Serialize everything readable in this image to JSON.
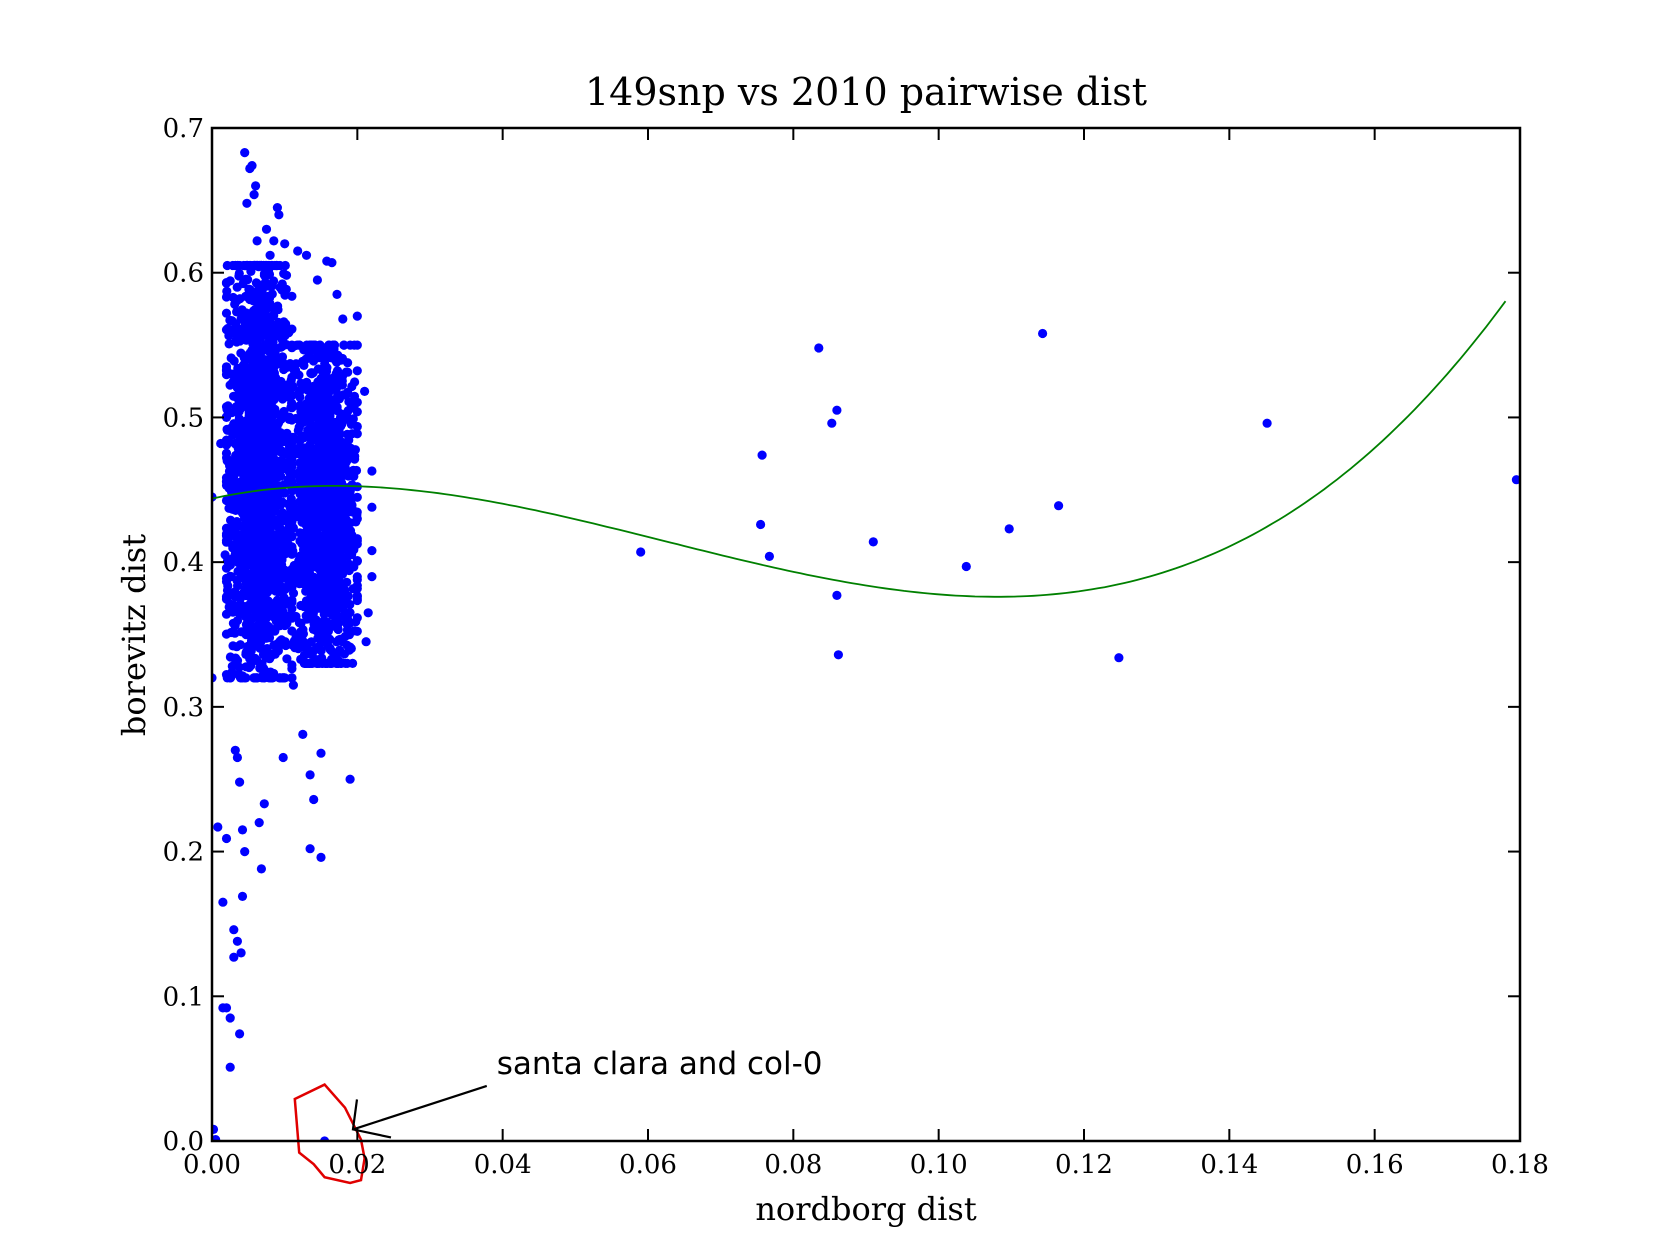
{
  "chart_data": {
    "type": "scatter",
    "title": "149snp vs 2010 pairwise dist",
    "xlabel": "nordborg dist",
    "ylabel": "borevitz dist",
    "xlim": [
      0.0,
      0.18
    ],
    "ylim": [
      0.0,
      0.7
    ],
    "xticks": [
      0.0,
      0.02,
      0.04,
      0.06,
      0.08,
      0.1,
      0.12,
      0.14,
      0.16,
      0.18
    ],
    "xtick_labels": [
      "0.00",
      "0.02",
      "0.04",
      "0.06",
      "0.08",
      "0.10",
      "0.12",
      "0.14",
      "0.16",
      "0.18"
    ],
    "yticks": [
      0.0,
      0.1,
      0.2,
      0.3,
      0.4,
      0.5,
      0.6,
      0.7
    ],
    "ytick_labels": [
      "0.0",
      "0.1",
      "0.2",
      "0.3",
      "0.4",
      "0.5",
      "0.6",
      "0.7"
    ],
    "grid": false,
    "colors": {
      "points": "#0000ff",
      "fit": "#008000",
      "highlight": "#e00000",
      "axes": "#000000"
    },
    "series": [
      {
        "kind": "scatter",
        "points": [
          [
            0.0,
            0.445
          ],
          [
            0.0,
            0.32
          ],
          [
            0.0002,
            0.008
          ],
          [
            0.0005,
            0.001
          ],
          [
            0.0008,
            0.217
          ],
          [
            0.0012,
            0.482
          ],
          [
            0.0015,
            0.165
          ],
          [
            0.0015,
            0.092
          ],
          [
            0.002,
            0.092
          ],
          [
            0.0018,
            0.405
          ],
          [
            0.0022,
            0.508
          ],
          [
            0.002,
            0.209
          ],
          [
            0.0025,
            0.085
          ],
          [
            0.0025,
            0.051
          ],
          [
            0.0028,
            0.328
          ],
          [
            0.003,
            0.146
          ],
          [
            0.003,
            0.127
          ],
          [
            0.0032,
            0.27
          ],
          [
            0.0035,
            0.265
          ],
          [
            0.0035,
            0.138
          ],
          [
            0.0038,
            0.248
          ],
          [
            0.0038,
            0.074
          ],
          [
            0.004,
            0.13
          ],
          [
            0.0042,
            0.215
          ],
          [
            0.0042,
            0.169
          ],
          [
            0.0045,
            0.2
          ],
          [
            0.0045,
            0.683
          ],
          [
            0.0048,
            0.648
          ],
          [
            0.0052,
            0.672
          ],
          [
            0.0055,
            0.674
          ],
          [
            0.0058,
            0.654
          ],
          [
            0.006,
            0.66
          ],
          [
            0.0062,
            0.622
          ],
          [
            0.0065,
            0.22
          ],
          [
            0.0068,
            0.188
          ],
          [
            0.0072,
            0.233
          ],
          [
            0.0075,
            0.63
          ],
          [
            0.008,
            0.612
          ],
          [
            0.0085,
            0.622
          ],
          [
            0.009,
            0.645
          ],
          [
            0.0092,
            0.64
          ],
          [
            0.0098,
            0.265
          ],
          [
            0.01,
            0.62
          ],
          [
            0.0112,
            0.315
          ],
          [
            0.0118,
            0.615
          ],
          [
            0.0125,
            0.281
          ],
          [
            0.013,
            0.612
          ],
          [
            0.0135,
            0.202
          ],
          [
            0.0135,
            0.253
          ],
          [
            0.014,
            0.236
          ],
          [
            0.0145,
            0.595
          ],
          [
            0.015,
            0.196
          ],
          [
            0.015,
            0.268
          ],
          [
            0.0155,
            0.0
          ],
          [
            0.0158,
            0.608
          ],
          [
            0.0165,
            0.607
          ],
          [
            0.0172,
            0.585
          ],
          [
            0.018,
            0.568
          ],
          [
            0.019,
            0.25
          ],
          [
            0.02,
            0.57
          ],
          [
            0.021,
            0.518
          ],
          [
            0.022,
            0.463
          ],
          [
            0.022,
            0.438
          ],
          [
            0.022,
            0.408
          ],
          [
            0.022,
            0.39
          ],
          [
            0.0215,
            0.365
          ],
          [
            0.0212,
            0.345
          ],
          [
            0.059,
            0.407
          ],
          [
            0.0755,
            0.426
          ],
          [
            0.0757,
            0.474
          ],
          [
            0.0767,
            0.404
          ],
          [
            0.0835,
            0.548
          ],
          [
            0.0853,
            0.496
          ],
          [
            0.086,
            0.505
          ],
          [
            0.086,
            0.377
          ],
          [
            0.0862,
            0.336
          ],
          [
            0.091,
            0.414
          ],
          [
            0.1038,
            0.397
          ],
          [
            0.1097,
            0.423
          ],
          [
            0.1143,
            0.558
          ],
          [
            0.1165,
            0.439
          ],
          [
            0.1248,
            0.334
          ],
          [
            0.1452,
            0.496
          ],
          [
            0.1795,
            0.457
          ]
        ],
        "clusters": [
          {
            "x_range": [
              0.002,
              0.011
            ],
            "y_range": [
              0.32,
              0.605
            ],
            "center": [
              0.0065,
              0.465
            ],
            "count": 1800
          },
          {
            "x_range": [
              0.011,
              0.02
            ],
            "y_range": [
              0.33,
              0.55
            ],
            "center": [
              0.0155,
              0.44
            ],
            "count": 1300
          }
        ]
      },
      {
        "kind": "line",
        "fit_polynomial_coefficients": [
          0.4439,
          1.1013,
          -37.82,
          201.9
        ],
        "x_range": [
          0.0,
          0.178
        ]
      }
    ],
    "annotations": [
      {
        "text": "santa clara and col-0",
        "xy": [
          0.0194,
          0.008
        ],
        "text_xy": [
          0.0385,
          0.0505
        ]
      }
    ],
    "highlight_polygon": [
      [
        0.0114,
        0.029
      ],
      [
        0.0155,
        0.039
      ],
      [
        0.0183,
        0.023
      ],
      [
        0.0205,
        0.001
      ],
      [
        0.021,
        -0.012
      ],
      [
        0.0205,
        -0.027
      ],
      [
        0.019,
        -0.029
      ],
      [
        0.0155,
        -0.025
      ],
      [
        0.014,
        -0.016
      ],
      [
        0.012,
        -0.008
      ]
    ]
  }
}
